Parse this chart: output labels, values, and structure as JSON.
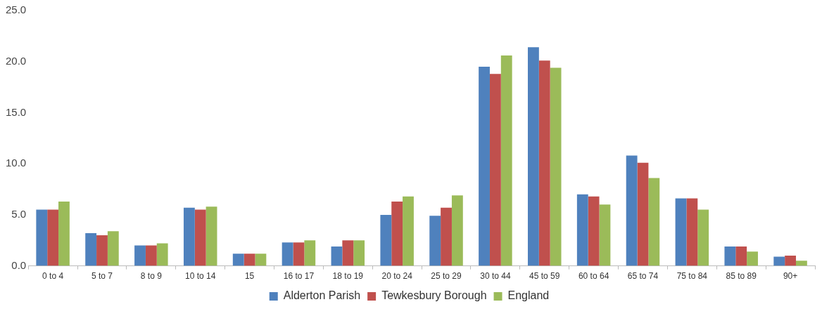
{
  "chart_data": {
    "type": "bar",
    "categories": [
      "0 to 4",
      "5 to 7",
      "8 to 9",
      "10 to 14",
      "15",
      "16 to 17",
      "18 to 19",
      "20 to 24",
      "25 to 29",
      "30 to 44",
      "45 to 59",
      "60 to 64",
      "65 to 74",
      "75 to 84",
      "85 to 89",
      "90+"
    ],
    "series": [
      {
        "name": "Alderton Parish",
        "color": "#4f81bd",
        "values": [
          5.5,
          3.2,
          2.0,
          5.7,
          1.2,
          2.3,
          1.9,
          5.0,
          4.9,
          19.5,
          21.4,
          7.0,
          10.8,
          6.6,
          1.9,
          0.9
        ]
      },
      {
        "name": "Tewkesbury Borough",
        "color": "#c0504d",
        "values": [
          5.5,
          3.0,
          2.0,
          5.5,
          1.2,
          2.3,
          2.5,
          6.3,
          5.7,
          18.8,
          20.1,
          6.8,
          10.1,
          6.6,
          1.9,
          1.0
        ]
      },
      {
        "name": "England",
        "color": "#9bbb59",
        "values": [
          6.3,
          3.4,
          2.2,
          5.8,
          1.2,
          2.5,
          2.5,
          6.8,
          6.9,
          20.6,
          19.4,
          6.0,
          8.6,
          5.5,
          1.4,
          0.5
        ]
      }
    ],
    "ylim": [
      0,
      25
    ],
    "yticks": [
      {
        "value": 0,
        "label": "0.0"
      },
      {
        "value": 5,
        "label": "5.0"
      },
      {
        "value": 10,
        "label": "10.0"
      },
      {
        "value": 15,
        "label": "15.0"
      },
      {
        "value": 20,
        "label": "20.0"
      },
      {
        "value": 25,
        "label": "25.0"
      }
    ],
    "grid": false,
    "legend": "bottom"
  }
}
